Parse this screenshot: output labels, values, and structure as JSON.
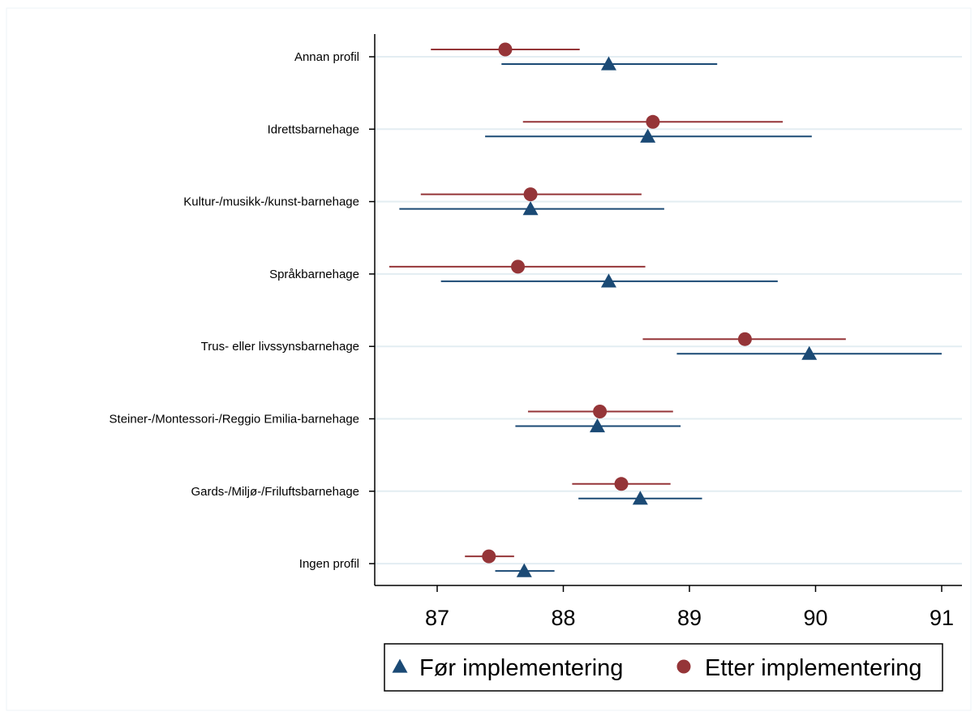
{
  "chart_data": {
    "type": "scatter",
    "orientation": "horizontal",
    "categories": [
      "Annan profil",
      "Idrettsbarnehage",
      "Kultur-/musikk-/kunst-barnehage",
      "Språkbarnehage",
      "Trus- eller livssynsbarnehage",
      "Steiner-/Montessori-/Reggio Emilia-barnehage",
      "Gards-/Miljø-/Friluftsbarnehage",
      "Ingen profil"
    ],
    "xlim": [
      86.5,
      91.15
    ],
    "xticks": [
      87,
      88,
      89,
      90,
      91
    ],
    "grid": true,
    "legend_position": "bottom",
    "series": [
      {
        "name": "Før implementering",
        "marker": "triangle",
        "color": "#1b4a75",
        "estimates": [
          88.36,
          88.67,
          87.74,
          88.36,
          89.95,
          88.27,
          88.61,
          87.69
        ],
        "lower": [
          87.51,
          87.38,
          86.7,
          87.03,
          88.9,
          87.62,
          88.12,
          87.46
        ],
        "upper": [
          89.22,
          89.97,
          88.8,
          89.7,
          91.0,
          88.93,
          89.1,
          87.93
        ]
      },
      {
        "name": "Etter implementering",
        "marker": "circle",
        "color": "#953538",
        "estimates": [
          87.54,
          88.71,
          87.74,
          87.64,
          89.44,
          88.29,
          88.46,
          87.41
        ],
        "lower": [
          86.95,
          87.68,
          86.87,
          86.62,
          88.63,
          87.72,
          88.07,
          87.22
        ],
        "upper": [
          88.13,
          89.74,
          88.62,
          88.65,
          90.24,
          88.87,
          88.85,
          87.61
        ]
      }
    ]
  }
}
